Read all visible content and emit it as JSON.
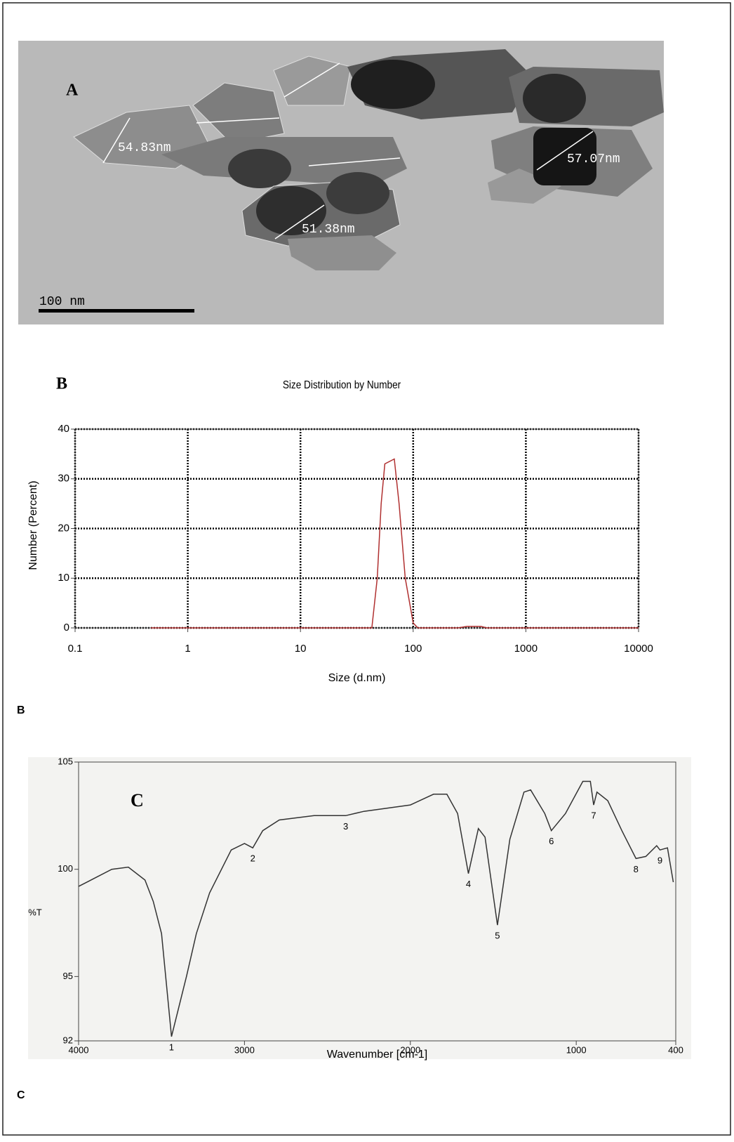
{
  "image": {
    "label": "A",
    "measurements": [
      "54.83nm",
      "51.38nm",
      "57.07nm"
    ],
    "scale_bar": "100 nm"
  },
  "chart_data": [
    {
      "type": "line",
      "label": "B",
      "footer_label": "B",
      "title": "Size Distribution by Number",
      "x_label": "Size (d.nm)",
      "y_label": "Number (Percent)",
      "log_x": true,
      "grid": true,
      "color": "#b03030",
      "xlim": [
        0.1,
        10000
      ],
      "xticks": [
        0.1,
        1,
        10,
        100,
        1000,
        10000
      ],
      "ylim": [
        0,
        40
      ],
      "yticks": [
        0,
        10,
        20,
        30,
        40
      ],
      "x": [
        0.47,
        43,
        48,
        52,
        56,
        68,
        75,
        85,
        100,
        110,
        250,
        300,
        400,
        450,
        10000
      ],
      "values": [
        0,
        0,
        10,
        25,
        33,
        34,
        25,
        10,
        1,
        0,
        0,
        0.3,
        0.3,
        0,
        0
      ]
    },
    {
      "type": "line",
      "label": "C",
      "footer_label": "C",
      "x_label": "Wavenumber [cm-1]",
      "y_label": "%T",
      "log_x": false,
      "grid": false,
      "color": "#333333",
      "xlim": [
        4000,
        400
      ],
      "xticks": [
        4000,
        3000,
        2000,
        1000,
        400
      ],
      "ylim": [
        92,
        105
      ],
      "yticks": [
        92,
        95,
        100,
        105
      ],
      "x": [
        4000,
        3800,
        3700,
        3600,
        3550,
        3500,
        3440,
        3350,
        3290,
        3210,
        3080,
        3000,
        2950,
        2890,
        2790,
        2580,
        2390,
        2280,
        2000,
        1860,
        1780,
        1715,
        1650,
        1590,
        1550,
        1475,
        1400,
        1315,
        1275,
        1190,
        1150,
        1065,
        960,
        915,
        895,
        875,
        810,
        725,
        640,
        580,
        515,
        495,
        450,
        415
      ],
      "values": [
        99.2,
        100.0,
        100.1,
        99.5,
        98.5,
        97.0,
        92.2,
        95.0,
        97.0,
        98.9,
        100.9,
        101.2,
        101.0,
        101.8,
        102.3,
        102.5,
        102.5,
        102.7,
        103.0,
        103.5,
        103.5,
        102.6,
        99.8,
        101.9,
        101.5,
        97.4,
        101.4,
        103.6,
        103.7,
        102.6,
        101.8,
        102.6,
        104.1,
        104.1,
        103.0,
        103.6,
        103.2,
        101.8,
        100.5,
        100.6,
        101.1,
        100.9,
        101.0,
        99.4
      ],
      "peaks": [
        {
          "label": "1",
          "x": 3440,
          "y": 92.2
        },
        {
          "label": "2",
          "x": 2950,
          "y": 101.0
        },
        {
          "label": "3",
          "x": 2390,
          "y": 102.5
        },
        {
          "label": "4",
          "x": 1650,
          "y": 99.8
        },
        {
          "label": "5",
          "x": 1475,
          "y": 97.4
        },
        {
          "label": "6",
          "x": 1150,
          "y": 101.8
        },
        {
          "label": "7",
          "x": 895,
          "y": 103.0
        },
        {
          "label": "8",
          "x": 640,
          "y": 100.5
        },
        {
          "label": "9",
          "x": 495,
          "y": 100.9
        }
      ]
    }
  ]
}
